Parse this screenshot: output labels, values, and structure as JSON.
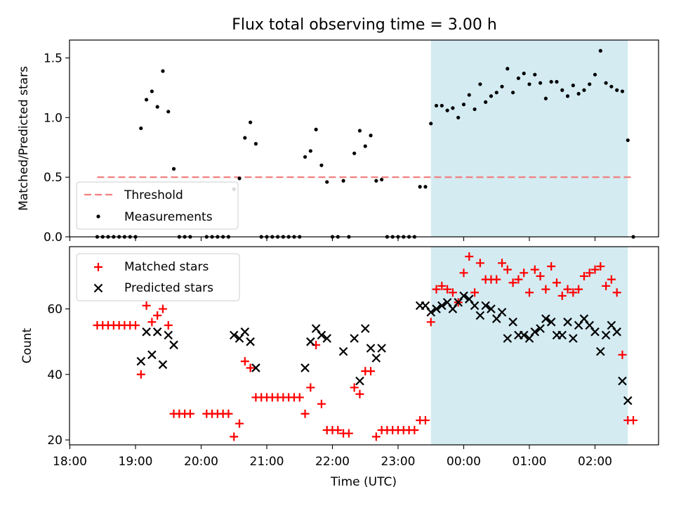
{
  "title": "Flux total observing time = 3.00 h",
  "x_ticks": [
    "18:00",
    "19:00",
    "20:00",
    "21:00",
    "22:00",
    "23:00",
    "00:00",
    "01:00",
    "02:00"
  ],
  "xlabel": "Time (UTC)",
  "shaded_span": [
    "23:30",
    "02:30"
  ],
  "colors": {
    "shade": "#add8e6",
    "threshold": "#f08080",
    "measurements": "#000000",
    "matched": "#ff0000",
    "predicted": "#000000"
  },
  "chart_data": [
    {
      "type": "scatter",
      "ylabel": "Matched/Predicted stars",
      "ylim": [
        0,
        1.65
      ],
      "y_ticks": [
        "0.0",
        "0.5",
        "1.0",
        "1.5"
      ],
      "legend": {
        "placement": "lower-left",
        "entries": [
          "Threshold",
          "Measurements"
        ]
      },
      "threshold": {
        "name": "Threshold",
        "x_range": [
          "18:25",
          "02:33"
        ],
        "y": 0.5,
        "style": "dashed"
      },
      "series": [
        {
          "name": "Measurements",
          "marker": "dot",
          "points": [
            [
              "18:25",
              0
            ],
            [
              "18:30",
              0
            ],
            [
              "18:35",
              0
            ],
            [
              "18:40",
              0
            ],
            [
              "18:45",
              0
            ],
            [
              "18:50",
              0
            ],
            [
              "18:55",
              0
            ],
            [
              "19:00",
              0
            ],
            [
              "19:05",
              0.91
            ],
            [
              "19:10",
              1.15
            ],
            [
              "19:15",
              1.22
            ],
            [
              "19:20",
              1.09
            ],
            [
              "19:25",
              1.39
            ],
            [
              "19:30",
              1.05
            ],
            [
              "19:35",
              0.57
            ],
            [
              "19:40",
              0
            ],
            [
              "19:45",
              0
            ],
            [
              "19:50",
              0
            ],
            [
              "20:05",
              0
            ],
            [
              "20:10",
              0
            ],
            [
              "20:15",
              0
            ],
            [
              "20:20",
              0
            ],
            [
              "20:25",
              0
            ],
            [
              "20:30",
              0.4
            ],
            [
              "20:35",
              0.49
            ],
            [
              "20:40",
              0.83
            ],
            [
              "20:45",
              0.96
            ],
            [
              "20:50",
              0.78
            ],
            [
              "20:55",
              0
            ],
            [
              "21:00",
              0
            ],
            [
              "21:05",
              0
            ],
            [
              "21:10",
              0
            ],
            [
              "21:15",
              0
            ],
            [
              "21:20",
              0
            ],
            [
              "21:25",
              0
            ],
            [
              "21:30",
              0
            ],
            [
              "21:35",
              0.67
            ],
            [
              "21:40",
              0.72
            ],
            [
              "21:45",
              0.9
            ],
            [
              "21:50",
              0.6
            ],
            [
              "21:55",
              0.46
            ],
            [
              "22:00",
              0
            ],
            [
              "22:05",
              0
            ],
            [
              "22:10",
              0.47
            ],
            [
              "22:15",
              0
            ],
            [
              "22:20",
              0.7
            ],
            [
              "22:25",
              0.89
            ],
            [
              "22:30",
              0.76
            ],
            [
              "22:35",
              0.85
            ],
            [
              "22:40",
              0.47
            ],
            [
              "22:45",
              0.48
            ],
            [
              "22:50",
              0
            ],
            [
              "22:55",
              0
            ],
            [
              "23:00",
              0
            ],
            [
              "23:05",
              0
            ],
            [
              "23:10",
              0
            ],
            [
              "23:15",
              0
            ],
            [
              "23:20",
              0.42
            ],
            [
              "23:25",
              0.42
            ],
            [
              "23:30",
              0.95
            ],
            [
              "23:35",
              1.1
            ],
            [
              "23:40",
              1.1
            ],
            [
              "23:45",
              1.06
            ],
            [
              "23:50",
              1.08
            ],
            [
              "23:55",
              1.0
            ],
            [
              "00:00",
              1.11
            ],
            [
              "00:05",
              1.19
            ],
            [
              "00:10",
              1.07
            ],
            [
              "00:15",
              1.28
            ],
            [
              "00:20",
              1.13
            ],
            [
              "00:25",
              1.18
            ],
            [
              "00:30",
              1.21
            ],
            [
              "00:35",
              1.26
            ],
            [
              "00:40",
              1.41
            ],
            [
              "00:45",
              1.21
            ],
            [
              "00:50",
              1.33
            ],
            [
              "00:55",
              1.37
            ],
            [
              "01:00",
              1.28
            ],
            [
              "01:05",
              1.36
            ],
            [
              "01:10",
              1.29
            ],
            [
              "01:15",
              1.16
            ],
            [
              "01:20",
              1.3
            ],
            [
              "01:25",
              1.3
            ],
            [
              "01:30",
              1.23
            ],
            [
              "01:35",
              1.18
            ],
            [
              "01:40",
              1.27
            ],
            [
              "01:45",
              1.2
            ],
            [
              "01:50",
              1.23
            ],
            [
              "01:55",
              1.28
            ],
            [
              "02:00",
              1.36
            ],
            [
              "02:05",
              1.56
            ],
            [
              "02:10",
              1.29
            ],
            [
              "02:15",
              1.26
            ],
            [
              "02:20",
              1.23
            ],
            [
              "02:25",
              1.22
            ],
            [
              "02:30",
              0.81
            ],
            [
              "02:35",
              0
            ]
          ]
        }
      ]
    },
    {
      "type": "scatter",
      "ylabel": "Count",
      "ylim": [
        18.5,
        79
      ],
      "y_ticks": [
        "20",
        "40",
        "60"
      ],
      "legend": {
        "placement": "upper-left",
        "entries": [
          "Matched stars",
          "Predicted stars"
        ]
      },
      "series": [
        {
          "name": "Matched stars",
          "marker": "plus",
          "points": [
            [
              "18:25",
              55
            ],
            [
              "18:30",
              55
            ],
            [
              "18:35",
              55
            ],
            [
              "18:40",
              55
            ],
            [
              "18:45",
              55
            ],
            [
              "18:50",
              55
            ],
            [
              "18:55",
              55
            ],
            [
              "19:00",
              55
            ],
            [
              "19:05",
              40
            ],
            [
              "19:10",
              61
            ],
            [
              "19:15",
              56
            ],
            [
              "19:20",
              58
            ],
            [
              "19:25",
              60
            ],
            [
              "19:30",
              55
            ],
            [
              "19:35",
              28
            ],
            [
              "19:40",
              28
            ],
            [
              "19:45",
              28
            ],
            [
              "19:50",
              28
            ],
            [
              "20:05",
              28
            ],
            [
              "20:10",
              28
            ],
            [
              "20:15",
              28
            ],
            [
              "20:20",
              28
            ],
            [
              "20:25",
              28
            ],
            [
              "20:30",
              21
            ],
            [
              "20:35",
              25
            ],
            [
              "20:40",
              44
            ],
            [
              "20:45",
              42
            ],
            [
              "20:50",
              33
            ],
            [
              "20:55",
              33
            ],
            [
              "21:00",
              33
            ],
            [
              "21:05",
              33
            ],
            [
              "21:10",
              33
            ],
            [
              "21:15",
              33
            ],
            [
              "21:20",
              33
            ],
            [
              "21:25",
              33
            ],
            [
              "21:30",
              33
            ],
            [
              "21:35",
              28
            ],
            [
              "21:40",
              36
            ],
            [
              "21:45",
              49
            ],
            [
              "21:50",
              31
            ],
            [
              "21:55",
              23
            ],
            [
              "22:00",
              23
            ],
            [
              "22:05",
              23
            ],
            [
              "22:10",
              22
            ],
            [
              "22:15",
              22
            ],
            [
              "22:20",
              36
            ],
            [
              "22:25",
              34
            ],
            [
              "22:30",
              41
            ],
            [
              "22:35",
              41
            ],
            [
              "22:40",
              21
            ],
            [
              "22:45",
              23
            ],
            [
              "22:50",
              23
            ],
            [
              "22:55",
              23
            ],
            [
              "23:00",
              23
            ],
            [
              "23:05",
              23
            ],
            [
              "23:10",
              23
            ],
            [
              "23:15",
              23
            ],
            [
              "23:20",
              26
            ],
            [
              "23:25",
              26
            ],
            [
              "23:30",
              56
            ],
            [
              "23:35",
              66
            ],
            [
              "23:40",
              67
            ],
            [
              "23:45",
              66
            ],
            [
              "23:50",
              65
            ],
            [
              "23:55",
              62
            ],
            [
              "00:00",
              71
            ],
            [
              "00:05",
              76
            ],
            [
              "00:10",
              65
            ],
            [
              "00:15",
              74
            ],
            [
              "00:20",
              69
            ],
            [
              "00:25",
              69
            ],
            [
              "00:30",
              69
            ],
            [
              "00:35",
              74
            ],
            [
              "00:40",
              72
            ],
            [
              "00:45",
              68
            ],
            [
              "00:50",
              69
            ],
            [
              "00:55",
              71
            ],
            [
              "01:00",
              65
            ],
            [
              "01:05",
              72
            ],
            [
              "01:10",
              70
            ],
            [
              "01:15",
              66
            ],
            [
              "01:20",
              73
            ],
            [
              "01:25",
              68
            ],
            [
              "01:30",
              64
            ],
            [
              "01:35",
              66
            ],
            [
              "01:40",
              65
            ],
            [
              "01:45",
              66
            ],
            [
              "01:50",
              70
            ],
            [
              "01:55",
              71
            ],
            [
              "02:00",
              72
            ],
            [
              "02:05",
              73
            ],
            [
              "02:10",
              67
            ],
            [
              "02:15",
              69
            ],
            [
              "02:20",
              65
            ],
            [
              "02:25",
              46
            ],
            [
              "02:30",
              26
            ],
            [
              "02:35",
              26
            ]
          ]
        },
        {
          "name": "Predicted stars",
          "marker": "x",
          "points": [
            [
              "19:05",
              44
            ],
            [
              "19:10",
              53
            ],
            [
              "19:15",
              46
            ],
            [
              "19:20",
              53
            ],
            [
              "19:25",
              43
            ],
            [
              "19:30",
              52
            ],
            [
              "19:35",
              49
            ],
            [
              "20:30",
              52
            ],
            [
              "20:35",
              51
            ],
            [
              "20:40",
              53
            ],
            [
              "20:45",
              50
            ],
            [
              "20:50",
              42
            ],
            [
              "21:35",
              42
            ],
            [
              "21:40",
              50
            ],
            [
              "21:45",
              54
            ],
            [
              "21:50",
              52
            ],
            [
              "21:55",
              51
            ],
            [
              "22:10",
              47
            ],
            [
              "22:20",
              51
            ],
            [
              "22:25",
              38
            ],
            [
              "22:30",
              54
            ],
            [
              "22:35",
              48
            ],
            [
              "22:40",
              45
            ],
            [
              "22:45",
              48
            ],
            [
              "23:20",
              61
            ],
            [
              "23:25",
              61
            ],
            [
              "23:30",
              59
            ],
            [
              "23:35",
              60
            ],
            [
              "23:40",
              61
            ],
            [
              "23:45",
              62
            ],
            [
              "23:50",
              60
            ],
            [
              "23:55",
              62
            ],
            [
              "00:00",
              64
            ],
            [
              "00:05",
              63
            ],
            [
              "00:10",
              61
            ],
            [
              "00:15",
              58
            ],
            [
              "00:20",
              61
            ],
            [
              "00:25",
              60
            ],
            [
              "00:30",
              57
            ],
            [
              "00:35",
              59
            ],
            [
              "00:40",
              51
            ],
            [
              "00:45",
              56
            ],
            [
              "00:50",
              52
            ],
            [
              "00:55",
              52
            ],
            [
              "01:00",
              51
            ],
            [
              "01:05",
              53
            ],
            [
              "01:10",
              54
            ],
            [
              "01:15",
              57
            ],
            [
              "01:20",
              56
            ],
            [
              "01:25",
              52
            ],
            [
              "01:30",
              52
            ],
            [
              "01:35",
              56
            ],
            [
              "01:40",
              51
            ],
            [
              "01:45",
              55
            ],
            [
              "01:50",
              57
            ],
            [
              "01:55",
              55
            ],
            [
              "02:00",
              53
            ],
            [
              "02:05",
              47
            ],
            [
              "02:10",
              52
            ],
            [
              "02:15",
              55
            ],
            [
              "02:20",
              53
            ],
            [
              "02:25",
              38
            ],
            [
              "02:30",
              32
            ]
          ]
        }
      ]
    }
  ]
}
